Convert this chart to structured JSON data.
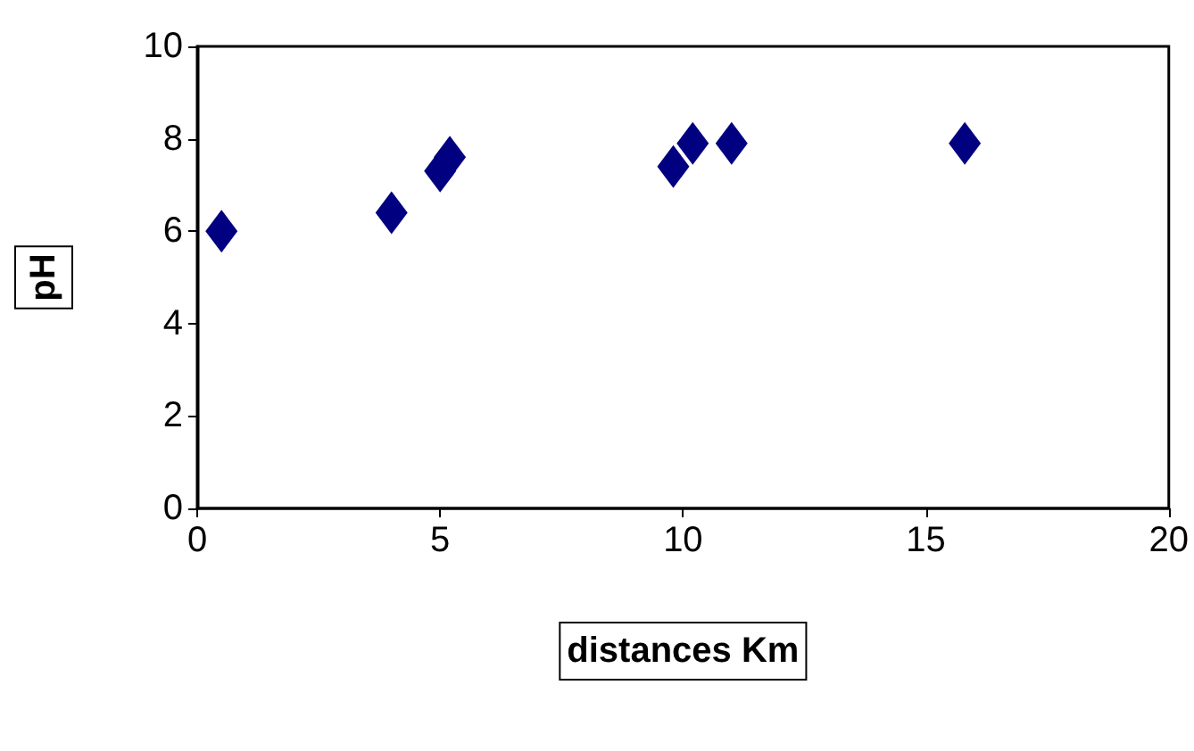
{
  "chart_data": {
    "type": "scatter",
    "xlabel": "distances Km",
    "ylabel": "pH",
    "x": [
      0.5,
      4.0,
      5.0,
      5.2,
      9.8,
      10.2,
      11.0,
      15.8
    ],
    "series": [
      {
        "color": "#000080",
        "values": [
          6.0,
          6.4,
          7.3,
          7.6,
          7.4,
          7.9,
          7.9,
          7.9
        ]
      }
    ],
    "xlim": [
      0,
      20
    ],
    "xticks": [
      0,
      5,
      10,
      15,
      20
    ],
    "ylim": [
      0,
      10
    ],
    "yticks": [
      0,
      2,
      4,
      6,
      8,
      10
    ],
    "marker": "diamond",
    "grid": false
  }
}
